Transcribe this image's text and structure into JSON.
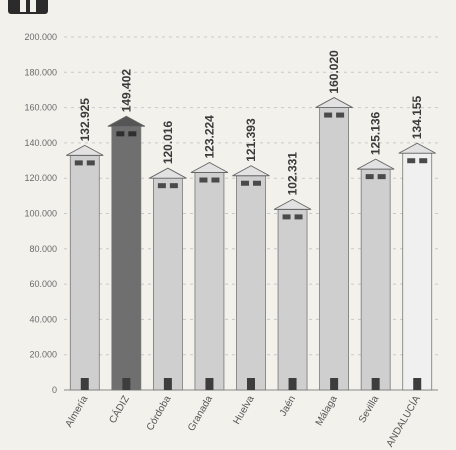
{
  "chart_data": {
    "type": "bar",
    "title": "",
    "xlabel": "",
    "ylabel": "",
    "categories": [
      "Almería",
      "CÁDIZ",
      "Córdoba",
      "Granada",
      "Huelva",
      "Jaén",
      "Málaga",
      "Sevilla",
      "ANDALUCÍA"
    ],
    "values": [
      132925,
      149402,
      120016,
      123224,
      121393,
      102331,
      160020,
      125136,
      134155
    ],
    "value_labels": [
      "132.925",
      "149.402",
      "120.016",
      "123.224",
      "121.393",
      "102.331",
      "160.020",
      "125.136",
      "134.155"
    ],
    "ylim": [
      0,
      200000
    ],
    "yticks": [
      0,
      20000,
      40000,
      60000,
      80000,
      100000,
      120000,
      140000,
      160000,
      180000,
      200000
    ],
    "ytick_labels": [
      "0",
      "20.000",
      "40.000",
      "60.000",
      "80.000",
      "100.000",
      "120.000",
      "140.000",
      "160.000",
      "180.000",
      "200.000"
    ],
    "grid": true,
    "highlight_category": "CÁDIZ",
    "colors": {
      "bar": "#cfcfcf",
      "bar_highlight": "#6f6f6f",
      "last_bar": "#f0f0f0",
      "grid": "#c9c9c9",
      "header_box": "#2b2b2b"
    }
  }
}
